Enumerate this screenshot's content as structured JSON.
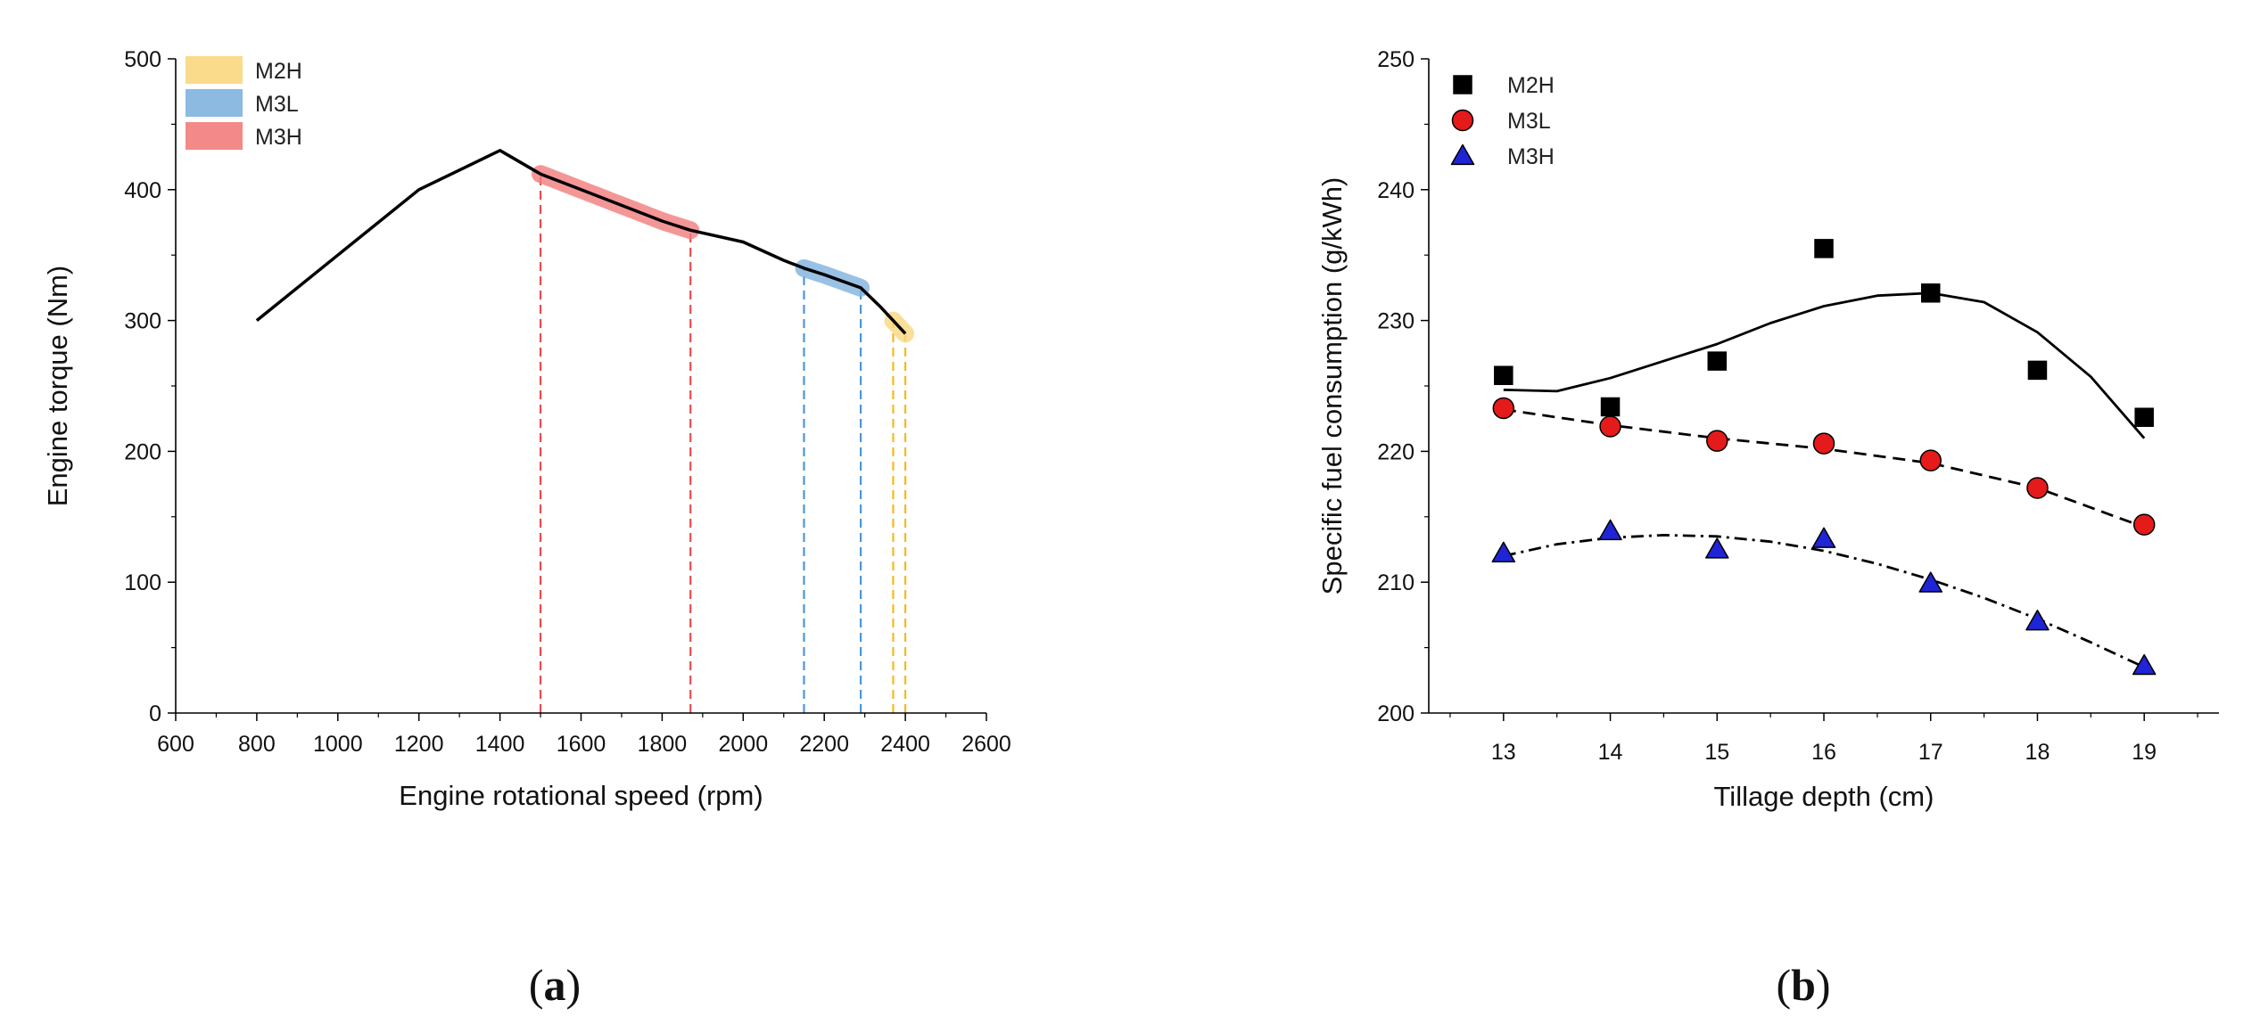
{
  "chart_data": [
    {
      "type": "line",
      "panel_label": "(a)",
      "panel_letter": "a",
      "xlabel": "Engine rotational speed (rpm)",
      "ylabel": "Engine torque (Nm)",
      "xlim": [
        600,
        2600
      ],
      "ylim": [
        0,
        500
      ],
      "xticks": [
        600,
        800,
        1000,
        1200,
        1400,
        1600,
        1800,
        2000,
        2200,
        2400,
        2600
      ],
      "yticks": [
        0,
        100,
        200,
        300,
        400,
        500
      ],
      "legend_position": "top-left",
      "curve": {
        "name": "Engine torque curve",
        "color": "#000000",
        "x": [
          800,
          1000,
          1200,
          1400,
          1500,
          1600,
          1700,
          1800,
          1870,
          2000,
          2100,
          2150,
          2200,
          2290,
          2340,
          2400
        ],
        "y": [
          300,
          350,
          400,
          430,
          412,
          400,
          388,
          376,
          369,
          360,
          346,
          340,
          335,
          325,
          310,
          290
        ]
      },
      "bands": [
        {
          "name": "M2H",
          "color": "#F9D77E",
          "x_start": 2370,
          "x_end": 2400
        },
        {
          "name": "M3L",
          "color": "#7FB2DE",
          "x_start": 2150,
          "x_end": 2290
        },
        {
          "name": "M3H",
          "color": "#F27C7C",
          "x_start": 1500,
          "x_end": 1870
        }
      ],
      "guide_lines": [
        {
          "x": 1500,
          "color": "#E84C4C"
        },
        {
          "x": 1870,
          "color": "#E84C4C"
        },
        {
          "x": 2150,
          "color": "#4C97D6"
        },
        {
          "x": 2290,
          "color": "#4C97D6"
        },
        {
          "x": 2370,
          "color": "#F5B921"
        },
        {
          "x": 2400,
          "color": "#F5B921"
        }
      ]
    },
    {
      "type": "scatter",
      "panel_label": "(b)",
      "panel_letter": "b",
      "xlabel": "Tillage depth (cm)",
      "ylabel": "Specific fuel consumption (g/kWh)",
      "xlim": [
        12.3,
        19.7
      ],
      "ylim": [
        200,
        250
      ],
      "xticks": [
        13,
        14,
        15,
        16,
        17,
        18,
        19
      ],
      "yticks": [
        200,
        210,
        220,
        230,
        240,
        250
      ],
      "legend_position": "top-left",
      "series": [
        {
          "name": "M2H",
          "marker": "square",
          "color": "#000000",
          "line_style": "solid",
          "x": [
            13,
            14,
            15,
            16,
            17,
            18,
            19
          ],
          "y": [
            225.8,
            223.4,
            226.9,
            235.5,
            232.1,
            226.2,
            222.6
          ],
          "fit_x": [
            13.0,
            13.5,
            14.0,
            14.5,
            15.0,
            15.5,
            16.0,
            16.5,
            17.0,
            17.5,
            18.0,
            18.5,
            19.0
          ],
          "fit_y": [
            224.7,
            224.6,
            225.6,
            226.9,
            228.2,
            229.8,
            231.1,
            231.9,
            232.1,
            231.4,
            229.1,
            225.7,
            221.0
          ]
        },
        {
          "name": "M3L",
          "marker": "circle",
          "color": "#E51A1A",
          "line_style": "dashed",
          "x": [
            13,
            14,
            15,
            16,
            17,
            18,
            19
          ],
          "y": [
            223.3,
            221.9,
            220.8,
            220.6,
            219.3,
            217.2,
            214.4
          ],
          "fit_x": [
            13.0,
            14.0,
            15.0,
            16.0,
            17.0,
            18.0,
            19.0
          ],
          "fit_y": [
            223.2,
            222.0,
            221.0,
            220.2,
            219.1,
            217.2,
            214.2
          ]
        },
        {
          "name": "M3H",
          "marker": "triangle",
          "color": "#1F24D6",
          "line_style": "dashdot",
          "x": [
            13,
            14,
            15,
            16,
            17,
            18,
            19
          ],
          "y": [
            212.2,
            213.9,
            212.5,
            213.3,
            209.9,
            207.0,
            203.6
          ],
          "fit_x": [
            13.0,
            13.5,
            14.0,
            14.5,
            15.0,
            15.5,
            16.0,
            16.5,
            17.0,
            17.5,
            18.0,
            18.5,
            19.0
          ],
          "fit_y": [
            212.0,
            212.9,
            213.4,
            213.6,
            213.5,
            213.1,
            212.4,
            211.4,
            210.2,
            208.8,
            207.2,
            205.4,
            203.5
          ]
        }
      ]
    }
  ]
}
